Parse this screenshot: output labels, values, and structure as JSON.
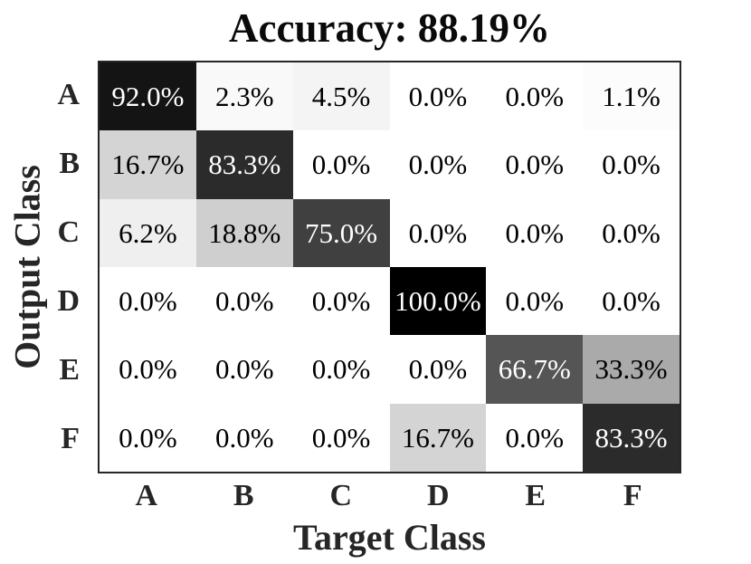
{
  "chart_data": {
    "type": "heatmap",
    "subtype": "confusion-matrix",
    "title": "Accuracy: 88.19%",
    "xlabel": "Target Class",
    "ylabel": "Output Class",
    "col_labels": [
      "A",
      "B",
      "C",
      "D",
      "E",
      "F"
    ],
    "row_labels": [
      "A",
      "B",
      "C",
      "D",
      "E",
      "F"
    ],
    "values": [
      [
        92.0,
        2.3,
        4.5,
        0.0,
        0.0,
        1.1
      ],
      [
        16.7,
        83.3,
        0.0,
        0.0,
        0.0,
        0.0
      ],
      [
        6.2,
        18.8,
        75.0,
        0.0,
        0.0,
        0.0
      ],
      [
        0.0,
        0.0,
        0.0,
        100.0,
        0.0,
        0.0
      ],
      [
        0.0,
        0.0,
        0.0,
        0.0,
        66.7,
        33.3
      ],
      [
        0.0,
        0.0,
        0.0,
        16.7,
        0.0,
        83.3
      ]
    ],
    "cell_text": [
      [
        "92.0%",
        "2.3%",
        "4.5%",
        "0.0%",
        "0.0%",
        "1.1%"
      ],
      [
        "16.7%",
        "83.3%",
        "0.0%",
        "0.0%",
        "0.0%",
        "0.0%"
      ],
      [
        "6.2%",
        "18.8%",
        "75.0%",
        "0.0%",
        "0.0%",
        "0.0%"
      ],
      [
        "0.0%",
        "0.0%",
        "0.0%",
        "100.0%",
        "0.0%",
        "0.0%"
      ],
      [
        "0.0%",
        "0.0%",
        "0.0%",
        "0.0%",
        "66.7%",
        "33.3%"
      ],
      [
        "0.0%",
        "0.0%",
        "0.0%",
        "16.7%",
        "0.0%",
        "83.3%"
      ]
    ],
    "colormap": {
      "low_color": "#ffffff",
      "high_color": "#000000",
      "domain": [
        0,
        100
      ]
    },
    "cell_text_colors": {
      "on_dark": "#ffffff",
      "on_light": "#000000",
      "white_text_threshold": 50
    },
    "border_color": "#262626",
    "grid": false,
    "legend": false
  }
}
